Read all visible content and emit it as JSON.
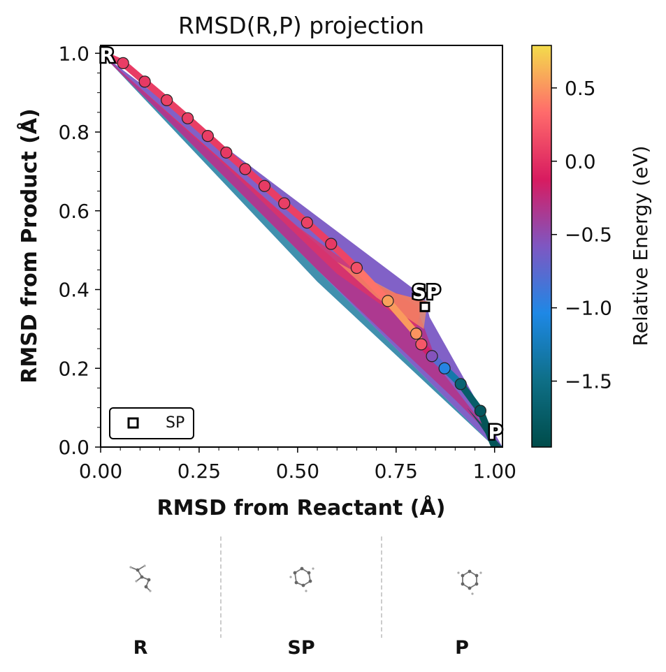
{
  "chart_data": {
    "type": "scatter",
    "title": "RMSD(R,P) projection",
    "xlabel": "RMSD from Reactant (Å)",
    "ylabel": "RMSD from Product (Å)",
    "xlim": [
      0.0,
      1.02
    ],
    "ylim": [
      0.0,
      1.02
    ],
    "x_ticks": [
      "0.00",
      "0.25",
      "0.50",
      "0.75",
      "1.00"
    ],
    "y_ticks": [
      "0.0",
      "0.2",
      "0.4",
      "0.6",
      "0.8",
      "1.0"
    ],
    "grid": false,
    "surface": "filled energy contours between the reactant, saddle point and product",
    "series": [
      {
        "marker": "circle",
        "x": [
          0.057,
          0.112,
          0.168,
          0.221,
          0.272,
          0.319,
          0.367,
          0.416,
          0.466,
          0.524,
          0.585,
          0.65,
          0.729,
          0.801,
          0.814,
          0.841,
          0.873,
          0.914,
          0.964
        ],
        "y": [
          0.975,
          0.928,
          0.881,
          0.835,
          0.79,
          0.748,
          0.706,
          0.663,
          0.619,
          0.57,
          0.516,
          0.455,
          0.371,
          0.288,
          0.261,
          0.231,
          0.2,
          0.16,
          0.092
        ],
        "energy": [
          0.07,
          0.05,
          0.1,
          0.08,
          0.07,
          0.05,
          0.07,
          0.06,
          0.08,
          0.1,
          0.05,
          0.18,
          0.55,
          0.5,
          0.22,
          -0.55,
          -1.0,
          -1.65,
          -1.8
        ]
      }
    ],
    "saddle_point": {
      "label": "SP",
      "x": 0.823,
      "y": 0.356
    },
    "endpoint_labels": [
      {
        "label": "R",
        "x": 0.0,
        "y": 1.0
      },
      {
        "label": "P",
        "x": 1.0,
        "y": 0.0
      }
    ],
    "legend": {
      "position": "bottom-left",
      "entries": [
        {
          "label": "SP",
          "marker": "open-square"
        }
      ]
    },
    "colorbar": {
      "label": "Relative Energy (eV)",
      "range": [
        -1.95,
        0.79
      ],
      "ticks": [
        "0.5",
        "0.0",
        "−0.5",
        "−1.0",
        "−1.5"
      ],
      "tick_values": [
        0.5,
        0.0,
        -0.5,
        -1.0,
        -1.5
      ],
      "colors": [
        "#004c4a",
        "#0e6f87",
        "#1e88e5",
        "#7e57c2",
        "#d81b60",
        "#ff6b6b",
        "#f3dc4b"
      ]
    }
  },
  "structures": {
    "labels": [
      "R",
      "SP",
      "P"
    ]
  }
}
